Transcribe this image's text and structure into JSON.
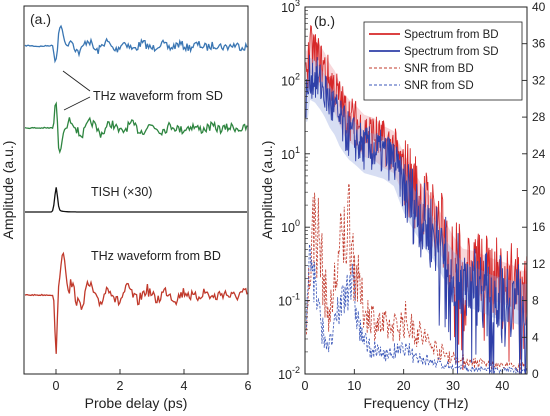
{
  "chart_data": [
    {
      "type": "line",
      "panel_label": "(a.)",
      "xlabel": "Probe delay (ps)",
      "ylabel": "Amplitude (a.u.)",
      "xlim": [
        -1,
        6
      ],
      "x_ticks": [
        0,
        2,
        4,
        6
      ],
      "grid": false,
      "traces": [
        {
          "name": "",
          "color": "#3a76b3",
          "offset_row": 1
        },
        {
          "name": "",
          "color": "#2e8540",
          "offset_row": 2
        },
        {
          "name": "",
          "color": "#111111",
          "offset_row": 3
        },
        {
          "name": "",
          "color": "#c0392b",
          "offset_row": 4
        }
      ],
      "annotations": [
        "THz waveform from SD",
        "TISH (×30)",
        "THz waveform from BD"
      ]
    },
    {
      "type": "line",
      "panel_label": "(b.)",
      "xlabel": "Frequency (THz)",
      "ylabel": "Amplitude (a.u.)",
      "xlim": [
        0,
        45
      ],
      "ylim_left": [
        0.01,
        1000
      ],
      "ylim_right": [
        0,
        40
      ],
      "y_scale_left": "log",
      "x_ticks": [
        0,
        10,
        20,
        30,
        40
      ],
      "y_ticks_left": [
        "10",
        "10",
        "10",
        "10",
        "10",
        "10"
      ],
      "y_tick_exponents": [
        "-2",
        "-1",
        "0",
        "1",
        "2",
        "3"
      ],
      "y_ticks_right": [
        0,
        4,
        8,
        12,
        16,
        20,
        24,
        28,
        32,
        36,
        40
      ],
      "legend_position": "top-right",
      "legend": [
        {
          "label": "Spectrum from BD",
          "color": "#d62728",
          "style": "solid"
        },
        {
          "label": "Spectrum from SD",
          "color": "#2f3fa8",
          "style": "solid"
        },
        {
          "label": "SNR from BD",
          "color": "#c0392b",
          "style": "dashed"
        },
        {
          "label": "SNR from SD",
          "color": "#3a56b8",
          "style": "dashed"
        }
      ],
      "series": [
        {
          "name": "Spectrum from BD",
          "axis": "left",
          "x": [
            0.5,
            1,
            2,
            3,
            4,
            5,
            6,
            7,
            8,
            9,
            10,
            12,
            14,
            16,
            18,
            20,
            22,
            24,
            26,
            28,
            30,
            32,
            34,
            36,
            38,
            40,
            42,
            44
          ],
          "y": [
            150,
            280,
            240,
            180,
            140,
            100,
            80,
            55,
            38,
            32,
            28,
            20,
            18,
            14,
            12,
            6,
            3.5,
            2.0,
            1.4,
            0.8,
            0.45,
            0.3,
            0.28,
            0.25,
            0.22,
            0.2,
            0.18,
            0.15
          ]
        },
        {
          "name": "Spectrum from SD",
          "axis": "left",
          "x": [
            0.5,
            1,
            2,
            3,
            4,
            5,
            6,
            7,
            8,
            9,
            10,
            12,
            14,
            16,
            18,
            20,
            22,
            24,
            26,
            28,
            30,
            32,
            34,
            36,
            38,
            40,
            42,
            44
          ],
          "y": [
            60,
            120,
            110,
            90,
            70,
            50,
            40,
            28,
            22,
            18,
            16,
            12,
            11,
            10,
            8,
            3.5,
            2.0,
            1.2,
            0.8,
            0.45,
            0.28,
            0.2,
            0.17,
            0.15,
            0.13,
            0.12,
            0.11,
            0.1
          ]
        },
        {
          "name": "SNR from BD",
          "axis": "right",
          "x": [
            0,
            1,
            2,
            3,
            4,
            5,
            6,
            7,
            8,
            9,
            10,
            11,
            12,
            14,
            16,
            18,
            20,
            22,
            24,
            26,
            28,
            30,
            32,
            35,
            40,
            45
          ],
          "y": [
            2,
            12,
            17,
            14,
            9,
            6,
            10,
            13,
            15,
            17,
            12,
            9,
            7,
            6,
            5,
            5,
            6,
            5,
            4,
            3,
            2.2,
            1.8,
            1.4,
            1.2,
            0.9,
            0.8
          ]
        },
        {
          "name": "SNR from SD",
          "axis": "right",
          "x": [
            0,
            1,
            2,
            3,
            4,
            5,
            6,
            7,
            8,
            9,
            10,
            11,
            12,
            14,
            16,
            18,
            20,
            22,
            24,
            26,
            28,
            30,
            32,
            35,
            40,
            45
          ],
          "y": [
            1,
            14,
            10,
            6,
            4,
            3,
            5,
            7,
            9,
            11,
            8,
            5,
            3.5,
            2.6,
            2.2,
            2.3,
            2.6,
            2.2,
            1.7,
            1.3,
            1.0,
            0.8,
            0.6,
            0.5,
            0.4,
            0.3
          ]
        }
      ]
    }
  ]
}
